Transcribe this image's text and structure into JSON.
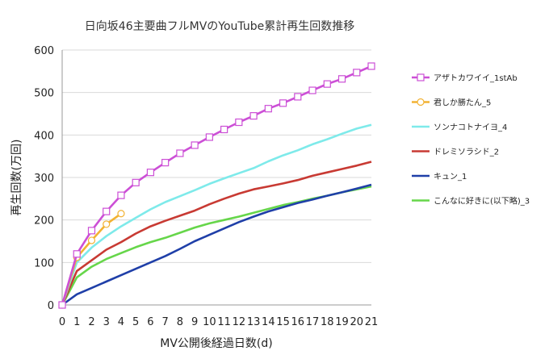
{
  "chart_data": {
    "type": "line",
    "title": "日向坂46主要曲フルMVのYouTube累計再生回数推移",
    "xlabel": "MV公開後経過日数(d)",
    "ylabel": "再生回数(万回)",
    "xlim": [
      0,
      21
    ],
    "ylim": [
      0,
      600
    ],
    "x_ticks": [
      "0",
      "1",
      "2",
      "3",
      "4",
      "5",
      "6",
      "7",
      "8",
      "9",
      "10",
      "11",
      "12",
      "13",
      "14",
      "15",
      "16",
      "17",
      "18",
      "19",
      "20",
      "21"
    ],
    "y_ticks": [
      "0",
      "100",
      "200",
      "300",
      "400",
      "500",
      "600"
    ],
    "grid": "horizontal",
    "legend_position": "right",
    "series": [
      {
        "name": "アザトカワイイ_1stAb",
        "color": "#cc4fd6",
        "marker": "square",
        "x": [
          0,
          1,
          2,
          3,
          4,
          5,
          6,
          7,
          8,
          9,
          10,
          11,
          12,
          13,
          14,
          15,
          16,
          17,
          18,
          19,
          20,
          21
        ],
        "y": [
          0,
          120,
          175,
          220,
          258,
          288,
          312,
          335,
          357,
          376,
          395,
          413,
          430,
          445,
          462,
          475,
          490,
          505,
          520,
          532,
          547,
          562
        ]
      },
      {
        "name": "君しか勝たん_5",
        "color": "#f2b233",
        "marker": "circle",
        "x": [
          0,
          1,
          2,
          3,
          4
        ],
        "y": [
          0,
          112,
          152,
          190,
          215
        ]
      },
      {
        "name": "ソンナコトナイヨ_4",
        "color": "#7eeaea",
        "marker": "none",
        "x": [
          0,
          1,
          2,
          3,
          4,
          5,
          6,
          7,
          8,
          9,
          10,
          11,
          12,
          13,
          14,
          15,
          16,
          17,
          18,
          19,
          20,
          21
        ],
        "y": [
          0,
          100,
          135,
          162,
          185,
          205,
          225,
          242,
          256,
          270,
          285,
          298,
          310,
          322,
          338,
          352,
          364,
          378,
          390,
          403,
          415,
          424
        ]
      },
      {
        "name": "ドレミソラシド_2",
        "color": "#c83a33",
        "marker": "none",
        "x": [
          0,
          1,
          2,
          3,
          4,
          5,
          6,
          7,
          8,
          9,
          10,
          11,
          12,
          13,
          14,
          15,
          16,
          17,
          18,
          19,
          20,
          21
        ],
        "y": [
          0,
          80,
          105,
          130,
          148,
          168,
          185,
          198,
          210,
          222,
          237,
          250,
          262,
          272,
          279,
          286,
          294,
          304,
          312,
          320,
          328,
          337
        ]
      },
      {
        "name": "キュン_1",
        "color": "#1f3fa8",
        "marker": "none",
        "x": [
          0,
          1,
          2,
          3,
          4,
          5,
          6,
          7,
          8,
          9,
          10,
          11,
          12,
          13,
          14,
          15,
          16,
          17,
          18,
          19,
          20,
          21
        ],
        "y": [
          0,
          25,
          40,
          55,
          70,
          85,
          100,
          115,
          132,
          150,
          165,
          180,
          195,
          208,
          220,
          230,
          240,
          248,
          257,
          265,
          274,
          283
        ]
      },
      {
        "name": "こんなに好きに(以下略)_3",
        "color": "#66d64a",
        "marker": "none",
        "x": [
          0,
          1,
          2,
          3,
          4,
          5,
          6,
          7,
          8,
          9,
          10,
          11,
          12,
          13,
          14,
          15,
          16,
          17,
          18,
          19,
          20,
          21
        ],
        "y": [
          0,
          65,
          90,
          108,
          122,
          136,
          148,
          158,
          170,
          182,
          192,
          200,
          208,
          217,
          226,
          235,
          242,
          250,
          257,
          265,
          272,
          279
        ]
      }
    ]
  }
}
